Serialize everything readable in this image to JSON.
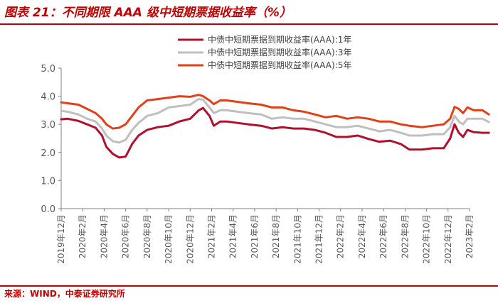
{
  "figure_title": "图表 21：不同期限 AAA 级中短期票据收益率（%）",
  "source": "来源：WIND，中泰证券研究所",
  "colors": {
    "brand": "#c00000",
    "s1": "#b0102c",
    "s3": "#bfbfbf",
    "s5": "#e0401a"
  },
  "chart_data": {
    "type": "line",
    "title": "",
    "xlabel": "",
    "ylabel": "",
    "ylim": [
      0,
      5
    ],
    "yticks": [
      "0.0",
      "1.0",
      "2.0",
      "3.0",
      "4.0",
      "5.0"
    ],
    "x_range": [
      "2019-12",
      "2023-02"
    ],
    "xticks": [
      "2019年12月",
      "2020年2月",
      "2020年4月",
      "2020年6月",
      "2020年8月",
      "2020年10月",
      "2020年12月",
      "2021年2月",
      "2021年4月",
      "2021年6月",
      "2021年8月",
      "2021年10月",
      "2021年12月",
      "2022年2月",
      "2022年4月",
      "2022年6月",
      "2022年8月",
      "2022年10月",
      "2022年12月",
      "2023年2月"
    ],
    "legend_position": "top-right",
    "grid": false,
    "series": [
      {
        "name": "中债中短期票据到期收益率(AAA):1年",
        "color": "#b0102c",
        "points": [
          [
            0,
            3.18
          ],
          [
            0.3,
            3.2
          ],
          [
            0.8,
            3.12
          ],
          [
            1.2,
            3.0
          ],
          [
            1.6,
            2.88
          ],
          [
            1.9,
            2.6
          ],
          [
            2.1,
            2.2
          ],
          [
            2.4,
            1.95
          ],
          [
            2.7,
            1.82
          ],
          [
            3.0,
            1.85
          ],
          [
            3.3,
            2.3
          ],
          [
            3.6,
            2.6
          ],
          [
            4.0,
            2.8
          ],
          [
            4.5,
            2.9
          ],
          [
            5.0,
            2.95
          ],
          [
            5.5,
            3.1
          ],
          [
            6.0,
            3.2
          ],
          [
            6.4,
            3.5
          ],
          [
            6.6,
            3.58
          ],
          [
            6.9,
            3.3
          ],
          [
            7.1,
            2.95
          ],
          [
            7.4,
            3.1
          ],
          [
            7.7,
            3.1
          ],
          [
            8.2,
            3.05
          ],
          [
            8.7,
            3.0
          ],
          [
            9.3,
            2.95
          ],
          [
            9.8,
            2.85
          ],
          [
            10.3,
            2.9
          ],
          [
            10.8,
            2.85
          ],
          [
            11.3,
            2.85
          ],
          [
            11.8,
            2.8
          ],
          [
            12.3,
            2.7
          ],
          [
            12.8,
            2.55
          ],
          [
            13.3,
            2.55
          ],
          [
            13.8,
            2.6
          ],
          [
            14.3,
            2.48
          ],
          [
            14.8,
            2.38
          ],
          [
            15.3,
            2.42
          ],
          [
            15.8,
            2.3
          ],
          [
            16.2,
            2.1
          ],
          [
            16.8,
            2.1
          ],
          [
            17.3,
            2.15
          ],
          [
            17.8,
            2.15
          ],
          [
            18.1,
            2.5
          ],
          [
            18.3,
            3.0
          ],
          [
            18.5,
            2.7
          ],
          [
            18.7,
            2.55
          ],
          [
            18.9,
            2.8
          ],
          [
            19.2,
            2.72
          ],
          [
            19.6,
            2.7
          ],
          [
            19.9,
            2.7
          ]
        ]
      },
      {
        "name": "中债中短期票据到期收益率(AAA):3年",
        "color": "#bfbfbf",
        "points": [
          [
            0,
            3.48
          ],
          [
            0.3,
            3.45
          ],
          [
            0.8,
            3.35
          ],
          [
            1.2,
            3.2
          ],
          [
            1.6,
            3.1
          ],
          [
            1.9,
            2.85
          ],
          [
            2.1,
            2.6
          ],
          [
            2.4,
            2.4
          ],
          [
            2.7,
            2.35
          ],
          [
            3.0,
            2.45
          ],
          [
            3.3,
            2.8
          ],
          [
            3.6,
            3.05
          ],
          [
            4.0,
            3.3
          ],
          [
            4.5,
            3.4
          ],
          [
            5.0,
            3.6
          ],
          [
            5.5,
            3.65
          ],
          [
            6.0,
            3.7
          ],
          [
            6.4,
            3.9
          ],
          [
            6.6,
            3.88
          ],
          [
            6.9,
            3.6
          ],
          [
            7.1,
            3.4
          ],
          [
            7.4,
            3.5
          ],
          [
            7.7,
            3.5
          ],
          [
            8.2,
            3.45
          ],
          [
            8.7,
            3.4
          ],
          [
            9.3,
            3.35
          ],
          [
            9.8,
            3.2
          ],
          [
            10.3,
            3.25
          ],
          [
            10.8,
            3.2
          ],
          [
            11.3,
            3.2
          ],
          [
            11.8,
            3.1
          ],
          [
            12.3,
            3.0
          ],
          [
            12.8,
            2.9
          ],
          [
            13.3,
            2.9
          ],
          [
            13.8,
            2.95
          ],
          [
            14.3,
            2.85
          ],
          [
            14.8,
            2.75
          ],
          [
            15.3,
            2.8
          ],
          [
            15.8,
            2.7
          ],
          [
            16.2,
            2.6
          ],
          [
            16.8,
            2.6
          ],
          [
            17.3,
            2.65
          ],
          [
            17.8,
            2.65
          ],
          [
            18.1,
            2.9
          ],
          [
            18.3,
            3.3
          ],
          [
            18.5,
            3.1
          ],
          [
            18.7,
            3.0
          ],
          [
            18.9,
            3.2
          ],
          [
            19.2,
            3.2
          ],
          [
            19.6,
            3.2
          ],
          [
            19.9,
            3.08
          ]
        ]
      },
      {
        "name": "中债中短期票据到期收益率(AAA):5年",
        "color": "#e0401a",
        "points": [
          [
            0,
            3.78
          ],
          [
            0.3,
            3.75
          ],
          [
            0.8,
            3.7
          ],
          [
            1.2,
            3.55
          ],
          [
            1.6,
            3.4
          ],
          [
            1.9,
            3.2
          ],
          [
            2.1,
            3.0
          ],
          [
            2.4,
            2.85
          ],
          [
            2.7,
            2.88
          ],
          [
            3.0,
            3.0
          ],
          [
            3.3,
            3.3
          ],
          [
            3.6,
            3.6
          ],
          [
            4.0,
            3.85
          ],
          [
            4.5,
            3.9
          ],
          [
            5.0,
            3.95
          ],
          [
            5.5,
            4.0
          ],
          [
            6.0,
            3.98
          ],
          [
            6.4,
            4.05
          ],
          [
            6.6,
            4.0
          ],
          [
            6.9,
            3.85
          ],
          [
            7.1,
            3.72
          ],
          [
            7.4,
            3.85
          ],
          [
            7.7,
            3.85
          ],
          [
            8.2,
            3.8
          ],
          [
            8.7,
            3.75
          ],
          [
            9.3,
            3.7
          ],
          [
            9.8,
            3.6
          ],
          [
            10.3,
            3.6
          ],
          [
            10.8,
            3.5
          ],
          [
            11.3,
            3.45
          ],
          [
            11.8,
            3.35
          ],
          [
            12.3,
            3.25
          ],
          [
            12.8,
            3.3
          ],
          [
            13.3,
            3.2
          ],
          [
            13.8,
            3.25
          ],
          [
            14.3,
            3.2
          ],
          [
            14.8,
            3.1
          ],
          [
            15.3,
            3.1
          ],
          [
            15.8,
            3.0
          ],
          [
            16.2,
            2.95
          ],
          [
            16.8,
            2.9
          ],
          [
            17.3,
            2.95
          ],
          [
            17.8,
            3.0
          ],
          [
            18.1,
            3.2
          ],
          [
            18.3,
            3.62
          ],
          [
            18.5,
            3.55
          ],
          [
            18.7,
            3.4
          ],
          [
            18.9,
            3.6
          ],
          [
            19.2,
            3.5
          ],
          [
            19.6,
            3.5
          ],
          [
            19.9,
            3.35
          ]
        ]
      }
    ]
  }
}
